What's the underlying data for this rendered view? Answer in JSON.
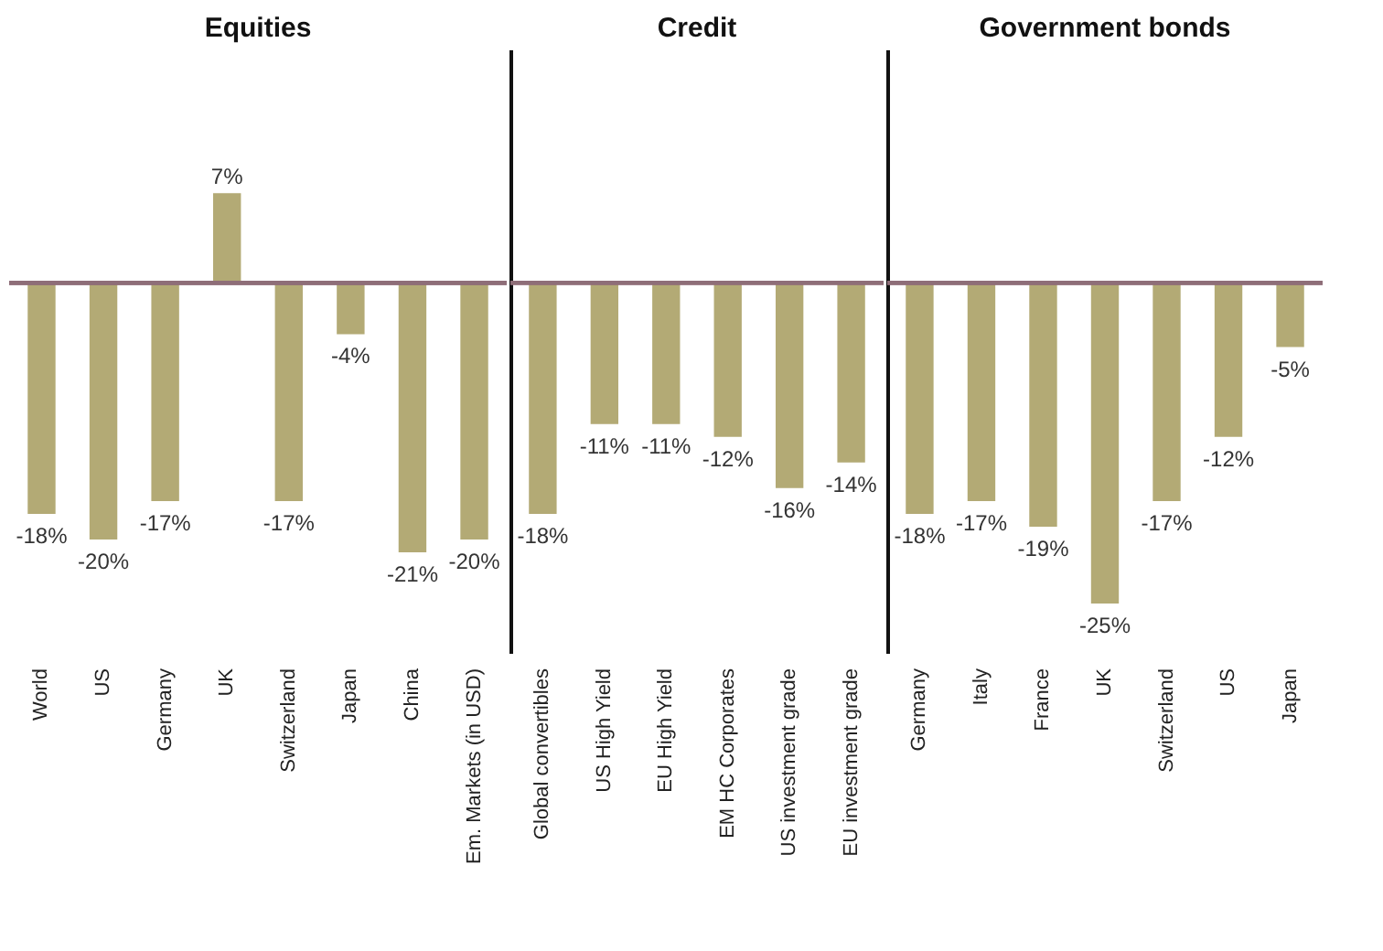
{
  "chart_data": [
    {
      "type": "bar",
      "title": "Equities",
      "categories": [
        "World",
        "US",
        "Germany",
        "UK",
        "Switzerland",
        "Japan",
        "China",
        "Em. Markets (in USD)"
      ],
      "values": [
        -18,
        -20,
        -17,
        7,
        -17,
        -4,
        -21,
        -20
      ],
      "value_labels": [
        "-18%",
        "-20%",
        "-17%",
        "7%",
        "-17%",
        "-4%",
        "-21%",
        "-20%"
      ],
      "color": "#b3aa75",
      "tick_labels": "x"
    },
    {
      "type": "bar",
      "title": "Credit",
      "categories": [
        "Global convertibles",
        "US High Yield",
        "EU High Yield",
        "EM HC Corporates",
        "US investment grade",
        "EU investment grade"
      ],
      "values": [
        -18,
        -11,
        -11,
        -12,
        -16,
        -14
      ],
      "value_labels": [
        "-18%",
        "-11%",
        "-11%",
        "-12%",
        "-16%",
        "-14%"
      ],
      "color": "#b3aa75",
      "tick_labels": "x"
    },
    {
      "type": "bar",
      "title": "Government bonds",
      "categories": [
        "Germany",
        "Italy",
        "France",
        "UK",
        "Switzerland",
        "US",
        "Japan"
      ],
      "values": [
        -18,
        -17,
        -19,
        -25,
        -17,
        -12,
        -5
      ],
      "value_labels": [
        "-18%",
        "-17%",
        "-19%",
        "-25%",
        "-17%",
        "-12%",
        "-5%"
      ],
      "color": "#b3aa75",
      "tick_labels": "x"
    }
  ]
}
